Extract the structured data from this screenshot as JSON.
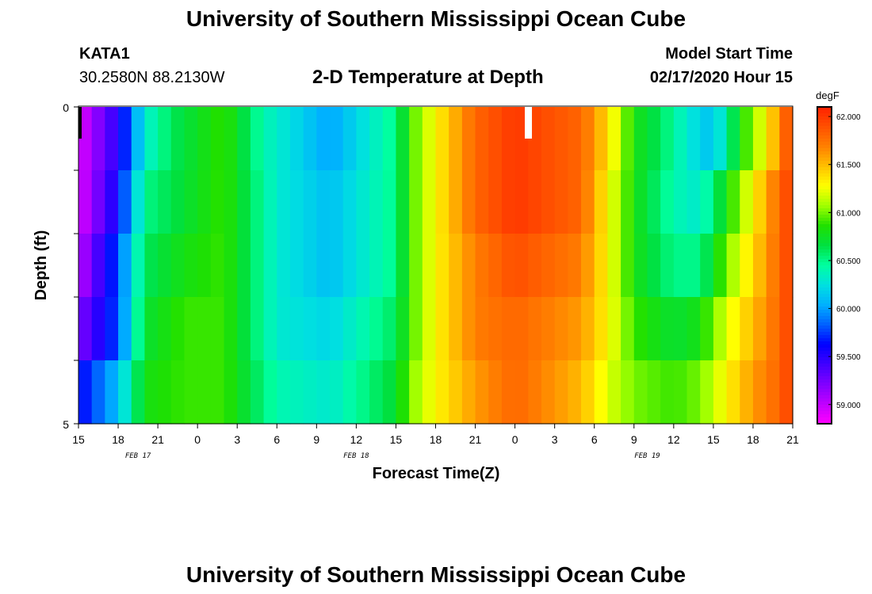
{
  "page": {
    "title": "University of Southern Mississippi Ocean Cube",
    "station": "KATA1",
    "coords": "30.2580N 88.2130W",
    "subtitle": "2-D Temperature at Depth",
    "model_start_label": "Model Start Time",
    "model_start_value": "02/17/2020 Hour 15",
    "footer_title": "University of Southern Mississippi Ocean Cube"
  },
  "colors": {
    "scale": [
      "#ff00ff",
      "#c000ff",
      "#8000ff",
      "#4000ff",
      "#0000ff",
      "#0060ff",
      "#00b0ff",
      "#00e0e0",
      "#00ffa0",
      "#00e040",
      "#20e000",
      "#a0ff00",
      "#ffff00",
      "#ffc000",
      "#ff8000",
      "#ff5000",
      "#ff2000"
    ]
  },
  "chart_data": {
    "type": "heatmap",
    "title": "2-D Temperature at Depth",
    "xlabel": "Forecast Time(Z)",
    "ylabel": "Depth (ft)",
    "x_ticks": [
      "15",
      "18",
      "21",
      "0",
      "3",
      "6",
      "9",
      "12",
      "15",
      "18",
      "21",
      "0",
      "3",
      "6",
      "9",
      "12",
      "15",
      "18",
      "21"
    ],
    "x_hours_range": [
      0,
      54
    ],
    "date_labels": [
      {
        "label": "FEB 17",
        "hour": 4.5
      },
      {
        "label": "FEB 18",
        "hour": 21
      },
      {
        "label": "FEB 19",
        "hour": 43
      }
    ],
    "y_tick_labels": [
      "0",
      "5"
    ],
    "ylim": [
      0,
      5
    ],
    "depth_levels": 5,
    "colorbar": {
      "unit": "degF",
      "vmin": 58.8,
      "vmax": 62.1,
      "ticks": [
        "59.000",
        "59.500",
        "60.000",
        "60.500",
        "61.000",
        "61.500",
        "62.000"
      ]
    },
    "series": [
      {
        "name": "0-1 ft",
        "keys": [
          [
            0,
            58.9
          ],
          [
            3,
            59.5
          ],
          [
            5,
            60.3
          ],
          [
            7,
            60.6
          ],
          [
            11,
            60.9
          ],
          [
            14,
            60.4
          ],
          [
            19,
            60.0
          ],
          [
            24,
            60.5
          ],
          [
            25,
            60.9
          ],
          [
            27,
            61.3
          ],
          [
            30,
            61.8
          ],
          [
            33,
            62.0
          ],
          [
            38,
            61.8
          ],
          [
            40,
            61.4
          ],
          [
            42,
            60.8
          ],
          [
            44,
            60.6
          ],
          [
            46,
            60.3
          ],
          [
            48,
            60.1
          ],
          [
            50,
            60.8
          ],
          [
            52,
            61.3
          ],
          [
            54,
            62.0
          ]
        ]
      },
      {
        "name": "1-2 ft",
        "keys": [
          [
            0,
            58.9
          ],
          [
            3,
            59.6
          ],
          [
            5,
            60.5
          ],
          [
            8,
            60.7
          ],
          [
            11,
            60.9
          ],
          [
            15,
            60.3
          ],
          [
            19,
            60.1
          ],
          [
            24,
            60.5
          ],
          [
            25,
            60.9
          ],
          [
            27,
            61.3
          ],
          [
            30,
            61.8
          ],
          [
            33,
            62.0
          ],
          [
            38,
            61.8
          ],
          [
            40,
            61.3
          ],
          [
            42,
            60.8
          ],
          [
            45,
            60.4
          ],
          [
            47,
            60.3
          ],
          [
            49,
            60.8
          ],
          [
            51,
            61.3
          ],
          [
            53,
            61.8
          ],
          [
            54,
            62.0
          ]
        ]
      },
      {
        "name": "2-3 ft",
        "keys": [
          [
            0,
            59.0
          ],
          [
            3,
            59.8
          ],
          [
            5,
            60.6
          ],
          [
            8,
            60.8
          ],
          [
            11,
            60.9
          ],
          [
            15,
            60.3
          ],
          [
            19,
            60.1
          ],
          [
            24,
            60.5
          ],
          [
            25,
            60.9
          ],
          [
            27,
            61.3
          ],
          [
            30,
            61.7
          ],
          [
            33,
            61.9
          ],
          [
            38,
            61.7
          ],
          [
            40,
            61.3
          ],
          [
            42,
            60.8
          ],
          [
            45,
            60.5
          ],
          [
            47,
            60.5
          ],
          [
            49,
            61.0
          ],
          [
            51,
            61.4
          ],
          [
            53,
            61.8
          ],
          [
            54,
            62.0
          ]
        ]
      },
      {
        "name": "3-4 ft",
        "keys": [
          [
            0,
            59.2
          ],
          [
            3,
            59.8
          ],
          [
            5,
            60.7
          ],
          [
            8,
            60.9
          ],
          [
            11,
            60.9
          ],
          [
            15,
            60.3
          ],
          [
            19,
            60.2
          ],
          [
            24,
            60.6
          ],
          [
            25,
            60.9
          ],
          [
            27,
            61.3
          ],
          [
            30,
            61.7
          ],
          [
            33,
            61.8
          ],
          [
            38,
            61.6
          ],
          [
            40,
            61.3
          ],
          [
            42,
            60.9
          ],
          [
            45,
            60.7
          ],
          [
            47,
            60.8
          ],
          [
            49,
            61.2
          ],
          [
            51,
            61.5
          ],
          [
            53,
            61.8
          ],
          [
            54,
            62.0
          ]
        ]
      },
      {
        "name": "4-5 ft",
        "keys": [
          [
            0,
            59.6
          ],
          [
            3,
            60.1
          ],
          [
            5,
            60.8
          ],
          [
            8,
            60.9
          ],
          [
            11,
            60.9
          ],
          [
            15,
            60.4
          ],
          [
            19,
            60.3
          ],
          [
            24,
            60.7
          ],
          [
            25,
            61.0
          ],
          [
            27,
            61.3
          ],
          [
            30,
            61.6
          ],
          [
            33,
            61.8
          ],
          [
            38,
            61.5
          ],
          [
            40,
            61.2
          ],
          [
            42,
            61.0
          ],
          [
            45,
            60.9
          ],
          [
            47,
            61.0
          ],
          [
            49,
            61.3
          ],
          [
            51,
            61.6
          ],
          [
            53,
            61.8
          ],
          [
            54,
            62.0
          ]
        ]
      }
    ]
  }
}
